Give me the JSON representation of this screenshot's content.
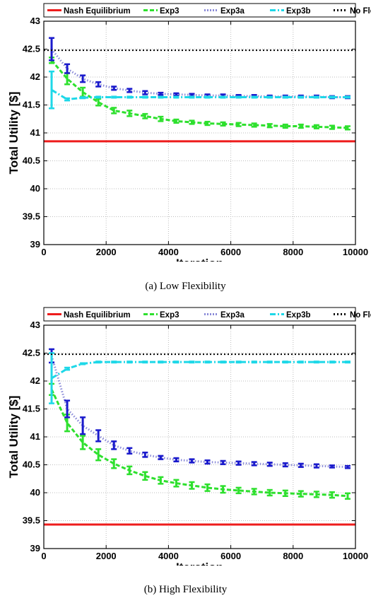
{
  "colors": {
    "nash": "#ee1c1c",
    "exp3": "#2ee02e",
    "exp3a": "#1a1acc",
    "exp3a_line": "#8a8ad8",
    "exp3b": "#1ed8e8",
    "noflex": "#000000",
    "grid": "#bdbdbd"
  },
  "chart_data": [
    {
      "type": "line",
      "caption": "(a) Low Flexibility",
      "xlabel": "Iteration",
      "ylabel": "Total Utility [$]",
      "xlim": [
        0,
        10000
      ],
      "ylim": [
        39,
        43
      ],
      "xticks": [
        "0",
        "2000",
        "4000",
        "6000",
        "8000",
        "10000"
      ],
      "xtick_values": [
        0,
        2000,
        4000,
        6000,
        8000,
        10000
      ],
      "yticks": [
        "39",
        "39.5",
        "40",
        "40.5",
        "41",
        "41.5",
        "42",
        "42.5",
        "43"
      ],
      "ytick_values": [
        39,
        39.5,
        40,
        40.5,
        41,
        41.5,
        42,
        42.5,
        43
      ],
      "grid": true,
      "legend_position": "top",
      "x": [
        250,
        750,
        1250,
        1750,
        2250,
        2750,
        3250,
        3750,
        4250,
        4750,
        5250,
        5750,
        6250,
        6750,
        7250,
        7750,
        8250,
        8750,
        9250,
        9750
      ],
      "series": [
        {
          "name": "Nash Equilibrium",
          "style": "solid",
          "color_key": "nash",
          "values": [
            40.85,
            40.85
          ],
          "x": [
            0,
            10000
          ]
        },
        {
          "name": "Exp3",
          "style": "dashed",
          "color_key": "exp3",
          "values": [
            42.3,
            41.97,
            41.73,
            41.55,
            41.4,
            41.35,
            41.3,
            41.25,
            41.21,
            41.19,
            41.17,
            41.16,
            41.15,
            41.14,
            41.13,
            41.12,
            41.12,
            41.11,
            41.1,
            41.09
          ],
          "errors": [
            0.05,
            0.1,
            0.08,
            0.06,
            0.05,
            0.05,
            0.04,
            0.04,
            0.03,
            0.03,
            0.03,
            0.03,
            0.03,
            0.03,
            0.03,
            0.03,
            0.03,
            0.03,
            0.03,
            0.03
          ]
        },
        {
          "name": "Exp3a",
          "style": "dotted",
          "color_key": "exp3a",
          "values": [
            42.5,
            42.15,
            41.97,
            41.87,
            41.8,
            41.76,
            41.72,
            41.7,
            41.69,
            41.68,
            41.67,
            41.67,
            41.66,
            41.66,
            41.65,
            41.65,
            41.65,
            41.65,
            41.64,
            41.64
          ],
          "errors": [
            0.2,
            0.08,
            0.06,
            0.04,
            0.03,
            0.03,
            0.03,
            0.02,
            0.02,
            0.02,
            0.02,
            0.02,
            0.02,
            0.02,
            0.02,
            0.02,
            0.02,
            0.02,
            0.02,
            0.02
          ]
        },
        {
          "name": "Exp3b",
          "style": "dashdot",
          "color_key": "exp3b",
          "values": [
            41.77,
            41.6,
            41.63,
            41.64,
            41.64,
            41.64,
            41.64,
            41.64,
            41.64,
            41.64,
            41.64,
            41.64,
            41.64,
            41.64,
            41.64,
            41.64,
            41.64,
            41.64,
            41.64,
            41.64
          ],
          "errors": [
            0.33,
            0.02,
            0.01,
            0.01,
            0.01,
            0.01,
            0.01,
            0.01,
            0.01,
            0.01,
            0.01,
            0.01,
            0.01,
            0.01,
            0.01,
            0.01,
            0.01,
            0.01,
            0.01,
            0.01
          ]
        },
        {
          "name": "No Flexibility",
          "style": "dotted",
          "color_key": "noflex",
          "values": [
            42.48,
            42.48
          ],
          "x": [
            0,
            10000
          ]
        }
      ]
    },
    {
      "type": "line",
      "caption": "(b) High Flexibility",
      "xlabel": "Iteration",
      "ylabel": "Total Utility [$]",
      "xlim": [
        0,
        10000
      ],
      "ylim": [
        39,
        43
      ],
      "xticks": [
        "0",
        "2000",
        "4000",
        "6000",
        "8000",
        "10000"
      ],
      "xtick_values": [
        0,
        2000,
        4000,
        6000,
        8000,
        10000
      ],
      "yticks": [
        "39",
        "39.5",
        "40",
        "40.5",
        "41",
        "41.5",
        "42",
        "42.5",
        "43"
      ],
      "ytick_values": [
        39,
        39.5,
        40,
        40.5,
        41,
        41.5,
        42,
        42.5,
        43
      ],
      "grid": true,
      "legend_position": "top",
      "x": [
        250,
        750,
        1250,
        1750,
        2250,
        2750,
        3250,
        3750,
        4250,
        4750,
        5250,
        5750,
        6250,
        6750,
        7250,
        7750,
        8250,
        8750,
        9250,
        9750
      ],
      "series": [
        {
          "name": "Nash Equilibrium",
          "style": "solid",
          "color_key": "nash",
          "values": [
            39.43,
            39.43
          ],
          "x": [
            0,
            10000
          ]
        },
        {
          "name": "Exp3",
          "style": "dashed",
          "color_key": "exp3",
          "values": [
            41.85,
            41.25,
            40.9,
            40.68,
            40.52,
            40.4,
            40.3,
            40.22,
            40.17,
            40.13,
            40.09,
            40.06,
            40.04,
            40.02,
            40.0,
            39.99,
            39.98,
            39.97,
            39.96,
            39.94
          ],
          "errors": [
            0.1,
            0.15,
            0.12,
            0.1,
            0.08,
            0.07,
            0.07,
            0.06,
            0.06,
            0.06,
            0.06,
            0.06,
            0.05,
            0.05,
            0.05,
            0.05,
            0.05,
            0.05,
            0.05,
            0.05
          ]
        },
        {
          "name": "Exp3a",
          "style": "dotted",
          "color_key": "exp3a",
          "values": [
            42.45,
            41.5,
            41.2,
            41.02,
            40.85,
            40.75,
            40.68,
            40.63,
            40.59,
            40.57,
            40.55,
            40.54,
            40.53,
            40.52,
            40.51,
            40.5,
            40.49,
            40.48,
            40.47,
            40.46
          ],
          "errors": [
            0.12,
            0.15,
            0.15,
            0.1,
            0.07,
            0.05,
            0.04,
            0.03,
            0.03,
            0.03,
            0.03,
            0.03,
            0.03,
            0.03,
            0.03,
            0.03,
            0.03,
            0.03,
            0.02,
            0.02
          ]
        },
        {
          "name": "Exp3b",
          "style": "dashdot",
          "color_key": "exp3b",
          "values": [
            42.05,
            42.22,
            42.31,
            42.34,
            42.34,
            42.34,
            42.34,
            42.34,
            42.34,
            42.34,
            42.34,
            42.34,
            42.34,
            42.34,
            42.34,
            42.34,
            42.34,
            42.34,
            42.34,
            42.34
          ],
          "errors": [
            0.45,
            0.02,
            0.01,
            0.01,
            0.01,
            0.01,
            0.01,
            0.01,
            0.01,
            0.01,
            0.01,
            0.01,
            0.01,
            0.01,
            0.01,
            0.01,
            0.01,
            0.01,
            0.01,
            0.01
          ]
        },
        {
          "name": "No Flexibility",
          "style": "dotted",
          "color_key": "noflex",
          "values": [
            42.48,
            42.48
          ],
          "x": [
            0,
            10000
          ]
        }
      ]
    }
  ]
}
